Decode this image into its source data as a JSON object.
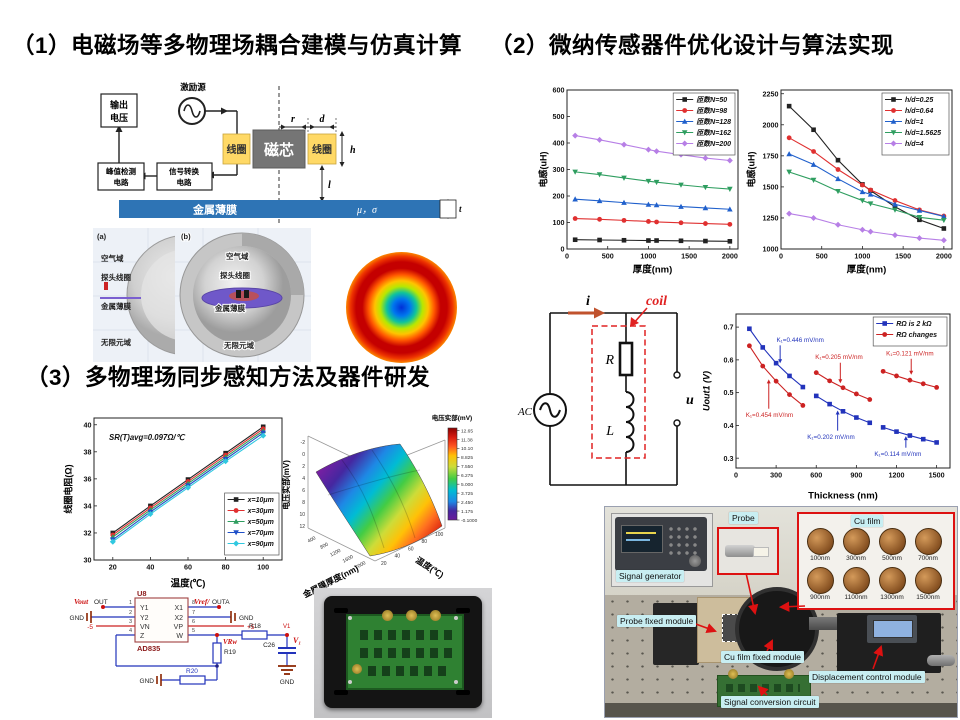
{
  "slide": {
    "h1": "（1）电磁场等多物理场耦合建模与仿真计算",
    "h2": "（2）微纳传感器件优化设计与算法实现",
    "h3": "（3）多物理场同步感知方法及器件研发"
  },
  "probe": {
    "output1": "输出",
    "output2": "电压",
    "excitation": "激励源",
    "coil_left": "线圈",
    "core": "磁芯",
    "coil_right": "线圈",
    "peak1": "峰值检测",
    "peak2": "电路",
    "convert1": "信号转换",
    "convert2": "电路",
    "film": "金属薄膜",
    "mu_sigma": "μ，σ",
    "dim_r": "r",
    "dim_d": "d",
    "dim_h": "h",
    "dim_l": "l",
    "dim_t": "t"
  },
  "sphere": {
    "a": "(a)",
    "b": "(b)",
    "air_a": "空气域",
    "coil_a": "探头线圈",
    "film_a": "金属薄膜",
    "inf_a": "无限元域",
    "air_b": "空气域",
    "coil_b": "探头线圈",
    "film_b": "金属薄膜",
    "inf_b": "无限元域"
  },
  "rl": {
    "i": "i",
    "coil": "coil",
    "R": "R",
    "L": "L",
    "ac": "AC",
    "u": "u"
  },
  "ad835": {
    "ref": "U8",
    "part": "AD835",
    "pins_left": [
      "Y1",
      "Y2",
      "VN",
      "Z"
    ],
    "nums_left": [
      "1",
      "2",
      "3",
      "4"
    ],
    "pins_right": [
      "X1",
      "X2",
      "VP",
      "W"
    ],
    "nums_right": [
      "8",
      "7",
      "6",
      "5"
    ],
    "vout": "Vout",
    "out": "OUT",
    "gnd1": "GND",
    "minus5": "-5",
    "vref": "Vref/",
    "outa": "OUTA",
    "gnd2": "GND",
    "plus5": "+5",
    "r18": "R18",
    "r19": "R19",
    "r20": "R20",
    "c26": "C26",
    "v1": "V1",
    "v1b": "V₁",
    "vrw": "VRw",
    "gnd3": "GND",
    "gnd4": "GND"
  },
  "surface": {
    "cbar_title": "电压实部(mV)",
    "zlabel": "电压实部(mV)",
    "xlabel": "金属膜厚度(nm)",
    "ylabel": "温度(℃)",
    "colorbar_ticks": [
      "12.65",
      "11.38",
      "10.10",
      "8.825",
      "7.550",
      "6.275",
      "5.000",
      "3.725",
      "2.450",
      "1.175",
      "-0.1000"
    ],
    "zticks": [
      "-2",
      "0",
      "2",
      "4",
      "6",
      "8",
      "10",
      "12"
    ],
    "xticks": [
      "400",
      "800",
      "1200",
      "1600",
      "2000"
    ],
    "yticks": [
      "20",
      "40",
      "60",
      "80",
      "100"
    ]
  },
  "experiment": {
    "labels": {
      "signal_generator": "Signal generator",
      "probe": "Probe",
      "cu_film": "Cu film",
      "probe_fixed": "Probe fixed module",
      "cu_film_fixed": "Cu film fixed module",
      "displacement": "Displacement control module",
      "signal_conversion": "Signal conversion circuit"
    },
    "film_sizes": [
      "100nm",
      "300nm",
      "500nm",
      "700nm",
      "900nm",
      "1100nm",
      "1300nm",
      "1500nm"
    ]
  },
  "chart_data": [
    {
      "id": "inductance_turns",
      "type": "line",
      "xlabel": "厚度(nm)",
      "ylabel": "电感(uH)",
      "xlim": [
        0,
        2100
      ],
      "ylim": [
        0,
        600
      ],
      "xticks": [
        0,
        500,
        1000,
        1500,
        2000
      ],
      "yticks": [
        0,
        100,
        200,
        300,
        400,
        500,
        600
      ],
      "x": [
        100,
        400,
        700,
        1000,
        1100,
        1400,
        1700,
        2000
      ],
      "legend_pos": "top-right",
      "series": [
        {
          "name": "匝数N=50",
          "color": "#222222",
          "marker": "square",
          "y": [
            35,
            34,
            33,
            32,
            32,
            31,
            30,
            29
          ]
        },
        {
          "name": "匝数N=98",
          "color": "#e03030",
          "marker": "circle",
          "y": [
            115,
            112,
            108,
            104,
            102,
            99,
            96,
            93
          ]
        },
        {
          "name": "匝数N=128",
          "color": "#2060cc",
          "marker": "triangle",
          "y": [
            188,
            182,
            175,
            168,
            166,
            160,
            155,
            150
          ]
        },
        {
          "name": "匝数N=162",
          "color": "#2f9e60",
          "marker": "triangle-down",
          "y": [
            291,
            281,
            268,
            256,
            252,
            242,
            233,
            226
          ]
        },
        {
          "name": "匝数N=200",
          "color": "#b77fe6",
          "marker": "diamond",
          "y": [
            428,
            412,
            394,
            375,
            369,
            356,
            343,
            334
          ]
        }
      ]
    },
    {
      "id": "inductance_hd",
      "type": "line",
      "xlabel": "厚度(nm)",
      "ylabel": "电感(uH)",
      "xlim": [
        0,
        2100
      ],
      "ylim": [
        1000,
        2280
      ],
      "xticks": [
        0,
        500,
        1000,
        1500,
        2000
      ],
      "yticks": [
        1000,
        1250,
        1500,
        1750,
        2000,
        2250
      ],
      "x": [
        100,
        400,
        700,
        1000,
        1100,
        1400,
        1700,
        2000
      ],
      "legend_pos": "top-right",
      "series": [
        {
          "name": "h/d=0.25",
          "color": "#222222",
          "marker": "square",
          "y": [
            2150,
            1960,
            1715,
            1520,
            1470,
            1340,
            1235,
            1165
          ]
        },
        {
          "name": "h/d=0.64",
          "color": "#e03030",
          "marker": "circle",
          "y": [
            1895,
            1785,
            1640,
            1515,
            1475,
            1390,
            1315,
            1265
          ]
        },
        {
          "name": "h/d=1",
          "color": "#2060cc",
          "marker": "triangle",
          "y": [
            1765,
            1680,
            1565,
            1460,
            1440,
            1360,
            1310,
            1262
          ]
        },
        {
          "name": "h/d=1.5625",
          "color": "#2f9e60",
          "marker": "triangle-down",
          "y": [
            1620,
            1555,
            1465,
            1390,
            1365,
            1315,
            1255,
            1232
          ]
        },
        {
          "name": "h/d=4",
          "color": "#b77fe6",
          "marker": "diamond",
          "y": [
            1285,
            1250,
            1195,
            1155,
            1140,
            1112,
            1088,
            1070
          ]
        }
      ]
    },
    {
      "id": "resistance_temp",
      "type": "line",
      "xlabel": "温度(℃)",
      "ylabel": "线圈电阻(Ω)",
      "xlim": [
        10,
        110
      ],
      "ylim": [
        30,
        40.5
      ],
      "xticks": [
        20,
        40,
        60,
        80,
        100
      ],
      "yticks": [
        30,
        32,
        34,
        36,
        38,
        40
      ],
      "x": [
        20,
        40,
        60,
        80,
        100
      ],
      "legend_pos": "bottom-right",
      "note": {
        "text": "SR(T)avg=0.097Ω/℃",
        "fx": 0.08,
        "fy": 0.1
      },
      "series": [
        {
          "name": "x=10μm",
          "color": "#222222",
          "marker": "square",
          "y": [
            32.0,
            34.0,
            35.95,
            37.9,
            39.85
          ]
        },
        {
          "name": "x=30μm",
          "color": "#e03030",
          "marker": "circle",
          "y": [
            31.85,
            33.85,
            35.8,
            37.75,
            39.7
          ]
        },
        {
          "name": "x=50μm",
          "color": "#2f9e60",
          "marker": "triangle",
          "y": [
            31.7,
            33.7,
            35.65,
            37.6,
            39.55
          ]
        },
        {
          "name": "x=70μm",
          "color": "#2050c8",
          "marker": "triangle-down",
          "y": [
            31.5,
            33.55,
            35.5,
            37.45,
            39.4
          ]
        },
        {
          "name": "x=90μm",
          "color": "#30c8e0",
          "marker": "diamond",
          "y": [
            31.35,
            33.4,
            35.35,
            37.3,
            39.2
          ]
        }
      ]
    },
    {
      "id": "uout_thickness",
      "type": "line",
      "xlabel": "Thickness (nm)",
      "ylabel": "Uout1 (V)",
      "xlim": [
        0,
        1600
      ],
      "ylim": [
        0.27,
        0.74
      ],
      "xticks": [
        0,
        300,
        600,
        900,
        1200,
        1500
      ],
      "yticks": [
        0.3,
        0.4,
        0.5,
        0.6,
        0.7
      ],
      "legend_pos": "top-right",
      "legend": [
        {
          "label": "RΩ is 2 kΩ",
          "color": "#2233bb",
          "marker": "square"
        },
        {
          "label": "RΩ changes",
          "color": "#cc2222",
          "marker": "circle"
        }
      ],
      "series": [
        {
          "color": "#2233bb",
          "marker": "square",
          "x": [
            100,
            200,
            300,
            400,
            500
          ],
          "y": [
            0.695,
            0.638,
            0.59,
            0.551,
            0.517
          ]
        },
        {
          "color": "#2233bb",
          "marker": "square",
          "x": [
            600,
            700,
            800,
            900,
            1000
          ],
          "y": [
            0.49,
            0.465,
            0.443,
            0.424,
            0.408
          ]
        },
        {
          "color": "#2233bb",
          "marker": "square",
          "x": [
            1100,
            1200,
            1300,
            1400,
            1500
          ],
          "y": [
            0.394,
            0.381,
            0.369,
            0.358,
            0.348
          ]
        },
        {
          "color": "#cc2222",
          "marker": "circle",
          "x": [
            100,
            200,
            300,
            400,
            500
          ],
          "y": [
            0.643,
            0.581,
            0.535,
            0.494,
            0.461
          ]
        },
        {
          "color": "#cc2222",
          "marker": "circle",
          "x": [
            600,
            700,
            800,
            900,
            1000
          ],
          "y": [
            0.561,
            0.536,
            0.515,
            0.496,
            0.479
          ]
        },
        {
          "color": "#cc2222",
          "marker": "circle",
          "x": [
            1100,
            1200,
            1300,
            1400,
            1500
          ],
          "y": [
            0.565,
            0.551,
            0.538,
            0.527,
            0.516
          ]
        }
      ],
      "annotations": [
        {
          "text": "K₁=0.446 mV/nm",
          "color": "#2233bb",
          "x": 330,
          "y": 0.585,
          "tx": 480,
          "ty": 0.655
        },
        {
          "text": "K₁=0.202 mV/nm",
          "color": "#2233bb",
          "x": 760,
          "y": 0.45,
          "tx": 710,
          "ty": 0.358
        },
        {
          "text": "K₁=0.114 mV/nm",
          "color": "#2233bb",
          "x": 1270,
          "y": 0.372,
          "tx": 1210,
          "ty": 0.306
        },
        {
          "text": "K₁=0.454 mV/nm",
          "color": "#cc2222",
          "x": 245,
          "y": 0.545,
          "tx": 250,
          "ty": 0.425
        },
        {
          "text": "K₁=0.205 mV/nm",
          "color": "#cc2222",
          "x": 780,
          "y": 0.524,
          "tx": 770,
          "ty": 0.602
        },
        {
          "text": "K₁=0.121 mV/nm",
          "color": "#cc2222",
          "x": 1310,
          "y": 0.55,
          "tx": 1300,
          "ty": 0.614
        }
      ]
    }
  ]
}
